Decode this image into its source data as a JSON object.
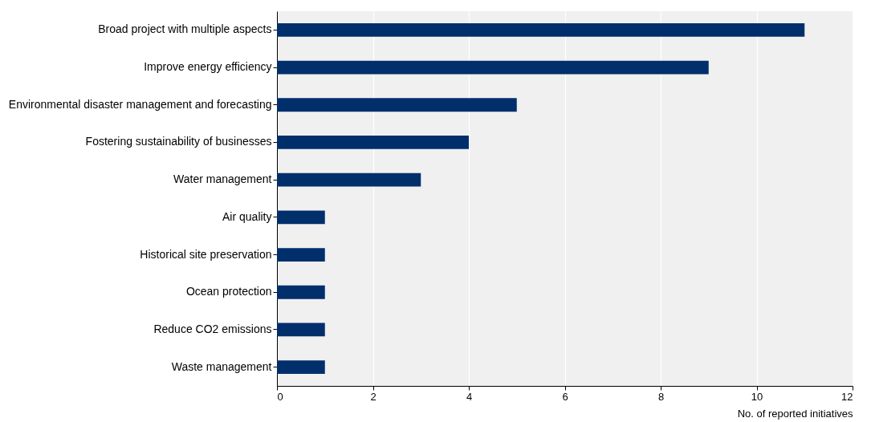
{
  "chart_data": {
    "type": "bar",
    "orientation": "horizontal",
    "xlabel": "No. of reported initiatives",
    "categories": [
      "Broad project with multiple aspects",
      "Improve energy efficiency",
      "Environmental disaster management and forecasting",
      "Fostering sustainability of businesses",
      "Water management",
      "Air quality",
      "Historical site preservation",
      "Ocean protection",
      "Reduce CO2 emissions",
      "Waste management"
    ],
    "values": [
      11,
      9,
      5,
      4,
      3,
      1,
      1,
      1,
      1,
      1
    ],
    "color": "#002f6c",
    "xlim": [
      0,
      12
    ],
    "xticks": [
      0,
      2,
      4,
      6,
      8,
      10,
      12
    ],
    "grid": "x"
  }
}
